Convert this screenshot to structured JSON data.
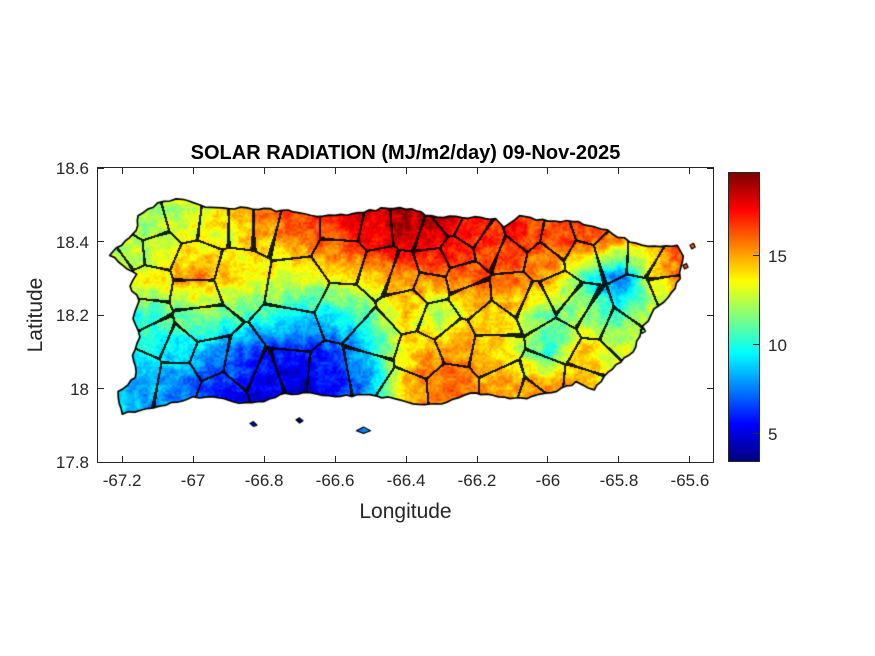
{
  "figure": {
    "background": "#ffffff",
    "axis_color": "#262626",
    "boundary_color": "#000000"
  },
  "chart_data": {
    "type": "heatmap",
    "title": "SOLAR RADIATION (MJ/m2/day) 09-Nov-2025",
    "xlabel": "Longitude",
    "ylabel": "Latitude",
    "xlim": [
      -67.268,
      -65.535
    ],
    "ylim": [
      17.8,
      18.6
    ],
    "x_tick_values": [
      -67.2,
      -67,
      -66.8,
      -66.6,
      -66.4,
      -66.2,
      -66,
      -65.8,
      -65.6
    ],
    "x_tick_labels": [
      "-67.2",
      "-67",
      "-66.8",
      "-66.6",
      "-66.4",
      "-66.2",
      "-66",
      "-65.8",
      "-65.6"
    ],
    "y_tick_values": [
      18.6,
      18.4,
      18.2,
      18,
      17.8
    ],
    "y_tick_labels": [
      "18.6",
      "18.4",
      "18.2",
      "18",
      "17.8"
    ],
    "grid_lines": false,
    "colormap": "jet",
    "colorbar": {
      "min": 3.48,
      "max": 19.66,
      "tick_values": [
        5,
        10,
        15
      ],
      "tick_labels": [
        "5",
        "10",
        "15"
      ],
      "position": "right"
    },
    "radiation_grid": {
      "units": "MJ/m2/day",
      "lon_start": -67.3,
      "lon_step": 0.1,
      "cols": 19,
      "lat_start": 18.6,
      "lat_step": -0.1,
      "rows": 9,
      "values": [
        [
          11.5,
          11.5,
          12,
          13,
          14.5,
          16,
          17,
          18,
          18.8,
          19.2,
          18.8,
          17.5,
          17,
          16.5,
          16,
          15.8,
          15.5,
          16,
          16
        ],
        [
          11.5,
          11.5,
          12,
          13,
          14.5,
          16,
          17,
          18,
          18.8,
          19.2,
          18.8,
          17.5,
          17,
          16.5,
          16,
          15.8,
          15.5,
          16,
          16
        ],
        [
          11.5,
          12,
          12.5,
          13.5,
          13.5,
          14.5,
          15.5,
          16.5,
          17.5,
          18.5,
          18,
          17.2,
          16.8,
          16.2,
          16.3,
          15.2,
          15,
          17,
          17
        ],
        [
          12,
          13,
          14,
          15.5,
          14.5,
          13.5,
          13,
          13.5,
          14.2,
          15.2,
          15.8,
          16.2,
          15.8,
          15,
          11,
          6.5,
          13.5,
          16.5,
          17
        ],
        [
          10,
          10,
          10.5,
          11.5,
          11,
          10.5,
          9.5,
          9.5,
          11,
          14,
          11.5,
          14,
          14,
          11,
          12,
          10.5,
          12.5,
          13,
          13
        ],
        [
          9,
          9.5,
          9.5,
          9,
          7.5,
          6,
          5.5,
          6.5,
          9,
          14,
          15.5,
          15,
          13.5,
          10,
          14.5,
          13,
          13.5,
          13,
          13
        ],
        [
          8.5,
          8.5,
          8,
          7,
          6,
          5,
          4.8,
          5.5,
          8,
          15,
          16,
          15.5,
          15,
          15.5,
          14.5,
          13,
          13.5,
          13,
          13
        ],
        [
          8.5,
          8.5,
          8,
          7,
          6,
          5.2,
          5,
          6,
          8.5,
          15,
          15.5,
          15,
          14.5,
          15,
          14,
          13,
          13.5,
          13,
          13
        ],
        [
          8.5,
          8.5,
          8,
          7,
          6,
          5.2,
          5,
          6,
          8.5,
          15,
          15.5,
          15,
          14.5,
          15,
          14,
          13,
          13.5,
          13,
          13
        ]
      ]
    },
    "coastline": [
      [
        -67.155,
        18.47
      ],
      [
        -67.1,
        18.505
      ],
      [
        -67.03,
        18.515
      ],
      [
        -66.95,
        18.49
      ],
      [
        -66.85,
        18.49
      ],
      [
        -66.75,
        18.485
      ],
      [
        -66.65,
        18.47
      ],
      [
        -66.55,
        18.475
      ],
      [
        -66.47,
        18.49
      ],
      [
        -66.4,
        18.49
      ],
      [
        -66.33,
        18.47
      ],
      [
        -66.26,
        18.465
      ],
      [
        -66.19,
        18.465
      ],
      [
        -66.15,
        18.46
      ],
      [
        -66.125,
        18.44
      ],
      [
        -66.08,
        18.47
      ],
      [
        -66.0,
        18.455
      ],
      [
        -65.93,
        18.455
      ],
      [
        -65.85,
        18.435
      ],
      [
        -65.77,
        18.4
      ],
      [
        -65.7,
        18.385
      ],
      [
        -65.635,
        18.39
      ],
      [
        -65.62,
        18.36
      ],
      [
        -65.63,
        18.3
      ],
      [
        -65.65,
        18.26
      ],
      [
        -65.7,
        18.215
      ],
      [
        -65.73,
        18.17
      ],
      [
        -65.76,
        18.1
      ],
      [
        -65.82,
        18.055
      ],
      [
        -65.87,
        17.995
      ],
      [
        -65.92,
        18.015
      ],
      [
        -65.99,
        17.99
      ],
      [
        -66.06,
        17.975
      ],
      [
        -66.14,
        17.975
      ],
      [
        -66.22,
        17.99
      ],
      [
        -66.3,
        17.955
      ],
      [
        -66.38,
        17.96
      ],
      [
        -66.45,
        17.975
      ],
      [
        -66.52,
        17.985
      ],
      [
        -66.6,
        17.975
      ],
      [
        -66.67,
        17.99
      ],
      [
        -66.74,
        17.985
      ],
      [
        -66.8,
        17.965
      ],
      [
        -66.87,
        17.96
      ],
      [
        -66.93,
        17.975
      ],
      [
        -67.0,
        17.975
      ],
      [
        -67.06,
        17.96
      ],
      [
        -67.13,
        17.945
      ],
      [
        -67.2,
        17.93
      ],
      [
        -67.21,
        17.99
      ],
      [
        -67.16,
        18.03
      ],
      [
        -67.17,
        18.09
      ],
      [
        -67.15,
        18.14
      ],
      [
        -67.17,
        18.19
      ],
      [
        -67.15,
        18.24
      ],
      [
        -67.18,
        18.28
      ],
      [
        -67.16,
        18.31
      ],
      [
        -67.235,
        18.362
      ],
      [
        -67.19,
        18.4
      ],
      [
        -67.16,
        18.43
      ]
    ],
    "islets": [
      [
        [
          -66.54,
          17.885
        ],
        [
          -66.52,
          17.895
        ],
        [
          -66.5,
          17.885
        ],
        [
          -66.52,
          17.878
        ]
      ],
      [
        [
          -65.74,
          18.16
        ],
        [
          -65.73,
          18.165
        ],
        [
          -65.725,
          18.155
        ],
        [
          -65.735,
          18.15
        ]
      ],
      [
        [
          -65.6,
          18.39
        ],
        [
          -65.59,
          18.395
        ],
        [
          -65.585,
          18.385
        ],
        [
          -65.595,
          18.38
        ]
      ],
      [
        [
          -65.62,
          18.335
        ],
        [
          -65.61,
          18.34
        ],
        [
          -65.605,
          18.33
        ],
        [
          -65.615,
          18.325
        ]
      ],
      [
        [
          -66.84,
          17.905
        ],
        [
          -66.83,
          17.91
        ],
        [
          -66.82,
          17.9
        ],
        [
          -66.83,
          17.897
        ]
      ],
      [
        [
          -66.71,
          17.915
        ],
        [
          -66.7,
          17.92
        ],
        [
          -66.69,
          17.912
        ],
        [
          -66.7,
          17.906
        ]
      ]
    ],
    "municipal_seeds": [
      [
        -67.02,
        18.47
      ],
      [
        -67.13,
        18.44
      ],
      [
        -67.17,
        18.375
      ],
      [
        -67.22,
        18.34
      ],
      [
        -67.13,
        18.285
      ],
      [
        -67.14,
        18.2
      ],
      [
        -67.11,
        18.14
      ],
      [
        -67.15,
        18.05
      ],
      [
        -67.04,
        18.03
      ],
      [
        -67.04,
        18.11
      ],
      [
        -66.96,
        18.08
      ],
      [
        -66.92,
        17.99
      ],
      [
        -66.86,
        18.06
      ],
      [
        -66.79,
        18.03
      ],
      [
        -66.73,
        18.05
      ],
      [
        -66.62,
        18.04
      ],
      [
        -66.51,
        18.06
      ],
      [
        -66.4,
        17.99
      ],
      [
        -66.36,
        18.09
      ],
      [
        -66.28,
        18.0
      ],
      [
        -66.11,
        18.0
      ],
      [
        -66.05,
        17.98
      ],
      [
        -66.01,
        18.03
      ],
      [
        -65.9,
        18.02
      ],
      [
        -65.88,
        18.08
      ],
      [
        -65.8,
        18.16
      ],
      [
        -65.75,
        18.23
      ],
      [
        -65.65,
        18.27
      ],
      [
        -65.66,
        18.34
      ],
      [
        -65.72,
        18.375
      ],
      [
        -65.83,
        18.38
      ],
      [
        -65.88,
        18.43
      ],
      [
        -65.9,
        18.36
      ],
      [
        -65.97,
        18.4
      ],
      [
        -66.01,
        18.35
      ],
      [
        -66.07,
        18.42
      ],
      [
        -66.11,
        18.37
      ],
      [
        -66.16,
        18.39
      ],
      [
        -66.22,
        18.43
      ],
      [
        -66.26,
        18.37
      ],
      [
        -66.28,
        18.46
      ],
      [
        -66.33,
        18.42
      ],
      [
        -66.39,
        18.44
      ],
      [
        -66.49,
        18.43
      ],
      [
        -66.565,
        18.445
      ],
      [
        -66.72,
        18.44
      ],
      [
        -66.8,
        18.46
      ],
      [
        -66.86,
        18.46
      ],
      [
        -66.94,
        18.46
      ],
      [
        -67.11,
        18.38
      ],
      [
        -66.99,
        18.33
      ],
      [
        -66.88,
        18.3
      ],
      [
        -66.7,
        18.27
      ],
      [
        -66.58,
        18.21
      ],
      [
        -66.72,
        18.16
      ],
      [
        -66.47,
        18.33
      ],
      [
        -66.41,
        18.31
      ],
      [
        -66.32,
        18.34
      ],
      [
        -66.24,
        18.3
      ],
      [
        -66.39,
        18.22
      ],
      [
        -66.31,
        18.19
      ],
      [
        -66.22,
        18.25
      ],
      [
        -66.26,
        18.13
      ],
      [
        -66.16,
        18.11
      ],
      [
        -66.16,
        18.18
      ],
      [
        -66.03,
        18.23
      ],
      [
        -66.1,
        18.26
      ],
      [
        -65.97,
        18.26
      ],
      [
        -65.92,
        18.22
      ],
      [
        -65.97,
        18.13
      ],
      [
        -65.87,
        18.19
      ],
      [
        -66.49,
        18.13
      ],
      [
        -66.98,
        18.18
      ],
      [
        -66.99,
        18.26
      ],
      [
        -66.57,
        18.36
      ],
      [
        -66.33,
        18.28
      ]
    ]
  }
}
